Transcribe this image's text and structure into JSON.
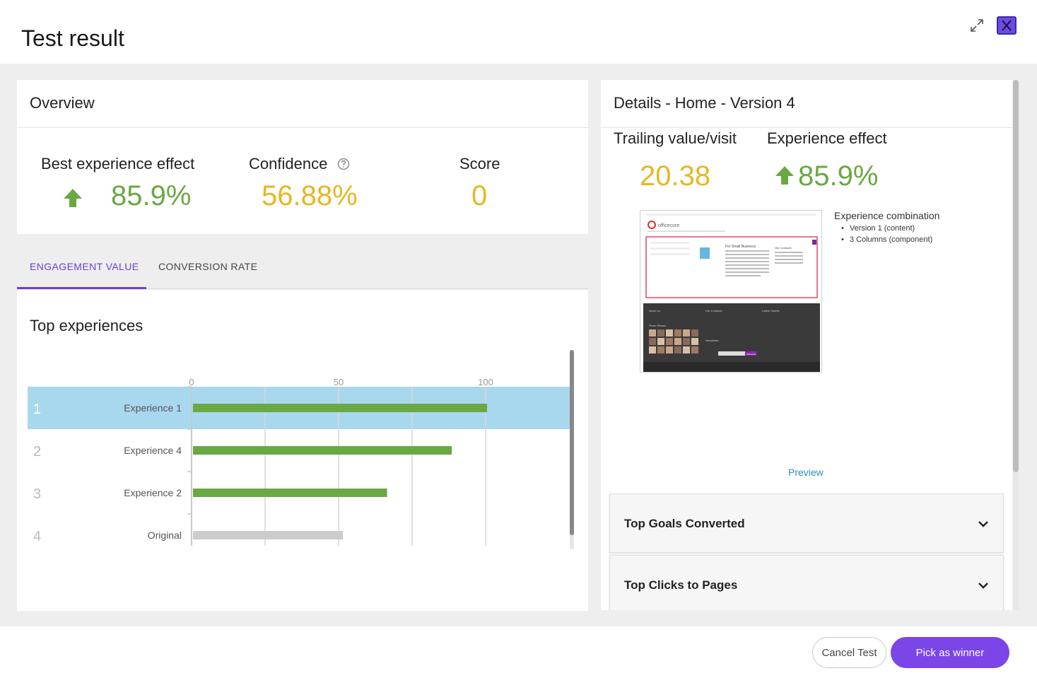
{
  "header": {
    "title": "Test result"
  },
  "overview": {
    "title": "Overview",
    "best_effect_label": "Best experience effect",
    "best_effect_value": "85.9%",
    "confidence_label": "Confidence",
    "confidence_value": "56.88%",
    "score_label": "Score",
    "score_value": "0"
  },
  "tabs": [
    {
      "label": "ENGAGEMENT VALUE",
      "active": true
    },
    {
      "label": "CONVERSION RATE",
      "active": false
    }
  ],
  "chart_section": {
    "title": "Top experiences"
  },
  "chart_data": {
    "type": "bar",
    "orientation": "horizontal",
    "categories": [
      "Experience 1",
      "Experience 4",
      "Experience 2",
      "Original"
    ],
    "ranks": [
      "1",
      "2",
      "3",
      "4"
    ],
    "values": [
      100,
      88,
      66,
      51
    ],
    "xticks": [
      "0",
      "50",
      "100"
    ],
    "xlim": [
      0,
      125
    ],
    "highlighted_index": 0,
    "colors": {
      "bar": "#6aa843",
      "original": "#cccccc",
      "highlight": "#a8d8ee"
    }
  },
  "details": {
    "title": "Details - Home - Version 4",
    "trailing_label": "Trailing value/visit",
    "trailing_value": "20.38",
    "effect_label": "Experience effect",
    "effect_value": "85.9%",
    "combination_title": "Experience combination",
    "combination_items": [
      "Version 1 (content)",
      "3 Columns (component)"
    ],
    "thumbnail": {
      "logo": "officecore",
      "headline": "For Small Business",
      "side_title": "Our Contacts",
      "footer_cols": [
        "About us",
        "Our Contacts",
        "Latest Tweets"
      ],
      "photo_stream": "Photo Stream",
      "newsletter": "Newsletter",
      "subscribe": "Subscribe"
    },
    "preview_link": "Preview",
    "accordions": [
      "Top Goals Converted",
      "Top Clicks to Pages"
    ]
  },
  "footer": {
    "cancel_label": "Cancel Test",
    "winner_label": "Pick as winner"
  },
  "colors": {
    "accent": "#7b45e8",
    "green": "#6aa843",
    "yellow": "#e5b821",
    "link": "#2a8fb8"
  }
}
